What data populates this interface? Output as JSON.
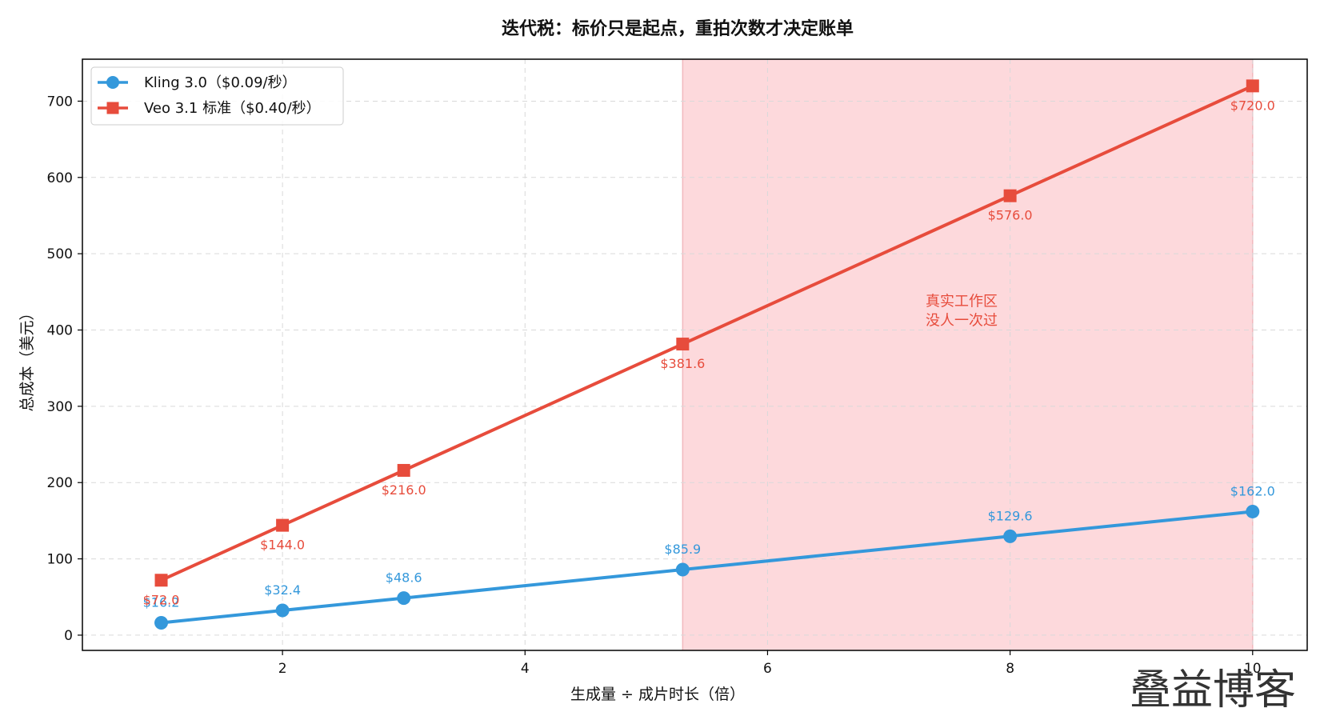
{
  "chart_data": {
    "type": "line",
    "title": "迭代税：标价只是起点，重拍次数才决定账单",
    "xlabel": "生成量 ÷ 成片时长（倍）",
    "ylabel": "总成本（美元）",
    "xlim": [
      0.35,
      10.45
    ],
    "ylim": [
      -20,
      755
    ],
    "xticks": [
      2,
      4,
      6,
      8,
      10
    ],
    "yticks": [
      0,
      100,
      200,
      300,
      400,
      500,
      600,
      700
    ],
    "grid": true,
    "legend_position": "top-left",
    "series": [
      {
        "name": "Kling 3.0（$0.09/秒）",
        "color": "#3498db",
        "marker": "circle",
        "x": [
          1,
          2,
          3,
          5.3,
          8,
          10
        ],
        "y": [
          16.2,
          32.4,
          48.6,
          85.9,
          129.6,
          162.0
        ],
        "labels": [
          "$16.2",
          "$32.4",
          "$48.6",
          "$85.9",
          "$129.6",
          "$162.0"
        ]
      },
      {
        "name": "Veo 3.1 标准（$0.40/秒）",
        "color": "#e74c3c",
        "marker": "square",
        "x": [
          1,
          2,
          3,
          5.3,
          8,
          10
        ],
        "y": [
          72.0,
          144.0,
          216.0,
          381.6,
          576.0,
          720.0
        ],
        "labels": [
          "$72.0",
          "$144.0",
          "$216.0",
          "$381.6",
          "$576.0",
          "$720.0"
        ]
      }
    ],
    "shaded_region": {
      "x_range": [
        5.3,
        10
      ],
      "color": "#fdd9dc",
      "annotation_line1": "真实工作区",
      "annotation_line2": "没人一次过",
      "annotation_color": "#e74c3c",
      "annotation_x": 7.6,
      "annotation_y": 425
    }
  },
  "watermark": "叠益博客"
}
